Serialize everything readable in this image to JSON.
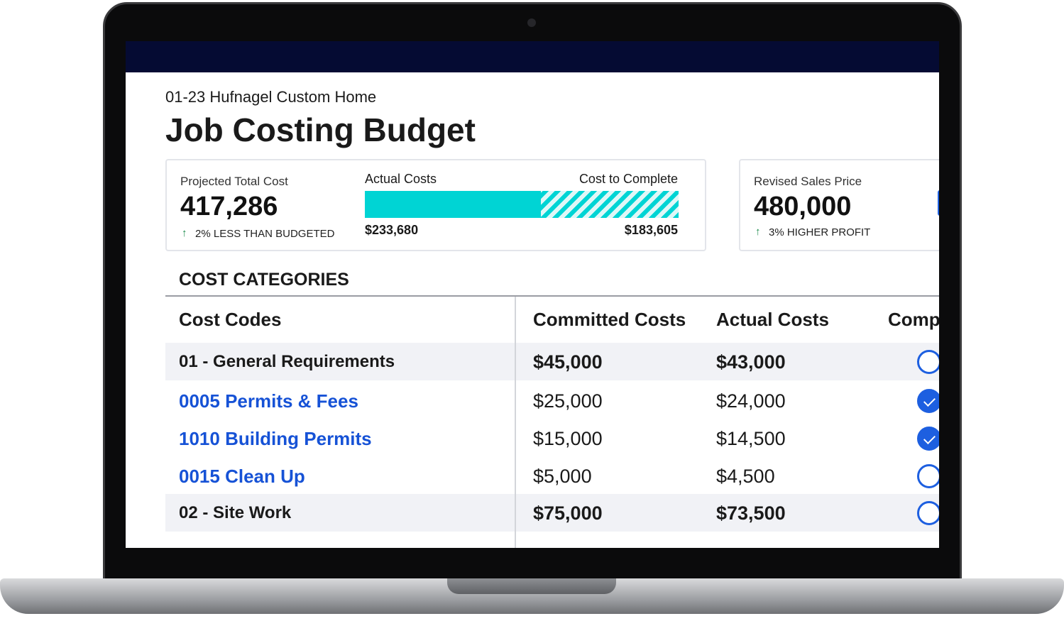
{
  "header": {
    "subtitle": "01-23 Hufnagel Custom Home",
    "title": "Job Costing Budget"
  },
  "summary": {
    "projected": {
      "label": "Projected Total Cost",
      "value": "417,286",
      "note": "2% LESS THAN BUDGETED"
    },
    "actual": {
      "label": "Actual Costs",
      "value": 233680,
      "value_label": "$233,680"
    },
    "to_complete": {
      "label": "Cost to Complete",
      "value": 183605,
      "value_label": "$183,605"
    },
    "sales": {
      "label": "Revised Sales Price",
      "value": "480,000",
      "note": "3% HIGHER PROFIT"
    }
  },
  "table": {
    "title": "COST CATEGORIES",
    "columns": [
      "Cost Codes",
      "Committed Costs",
      "Actual Costs",
      "Comp"
    ],
    "rows": [
      {
        "code": "01 - General Requirements",
        "committed": "$45,000",
        "actual": "$43,000",
        "group": true,
        "complete": false
      },
      {
        "code": "0005 Permits & Fees",
        "committed": "$25,000",
        "actual": "$24,000",
        "group": false,
        "complete": true
      },
      {
        "code": "1010 Building Permits",
        "committed": "$15,000",
        "actual": "$14,500",
        "group": false,
        "complete": true
      },
      {
        "code": "0015 Clean Up",
        "committed": "$5,000",
        "actual": "$4,500",
        "group": false,
        "complete": false
      },
      {
        "code": "02 - Site Work",
        "committed": "$75,000",
        "actual": "$73,500",
        "group": true,
        "complete": false
      }
    ]
  }
}
